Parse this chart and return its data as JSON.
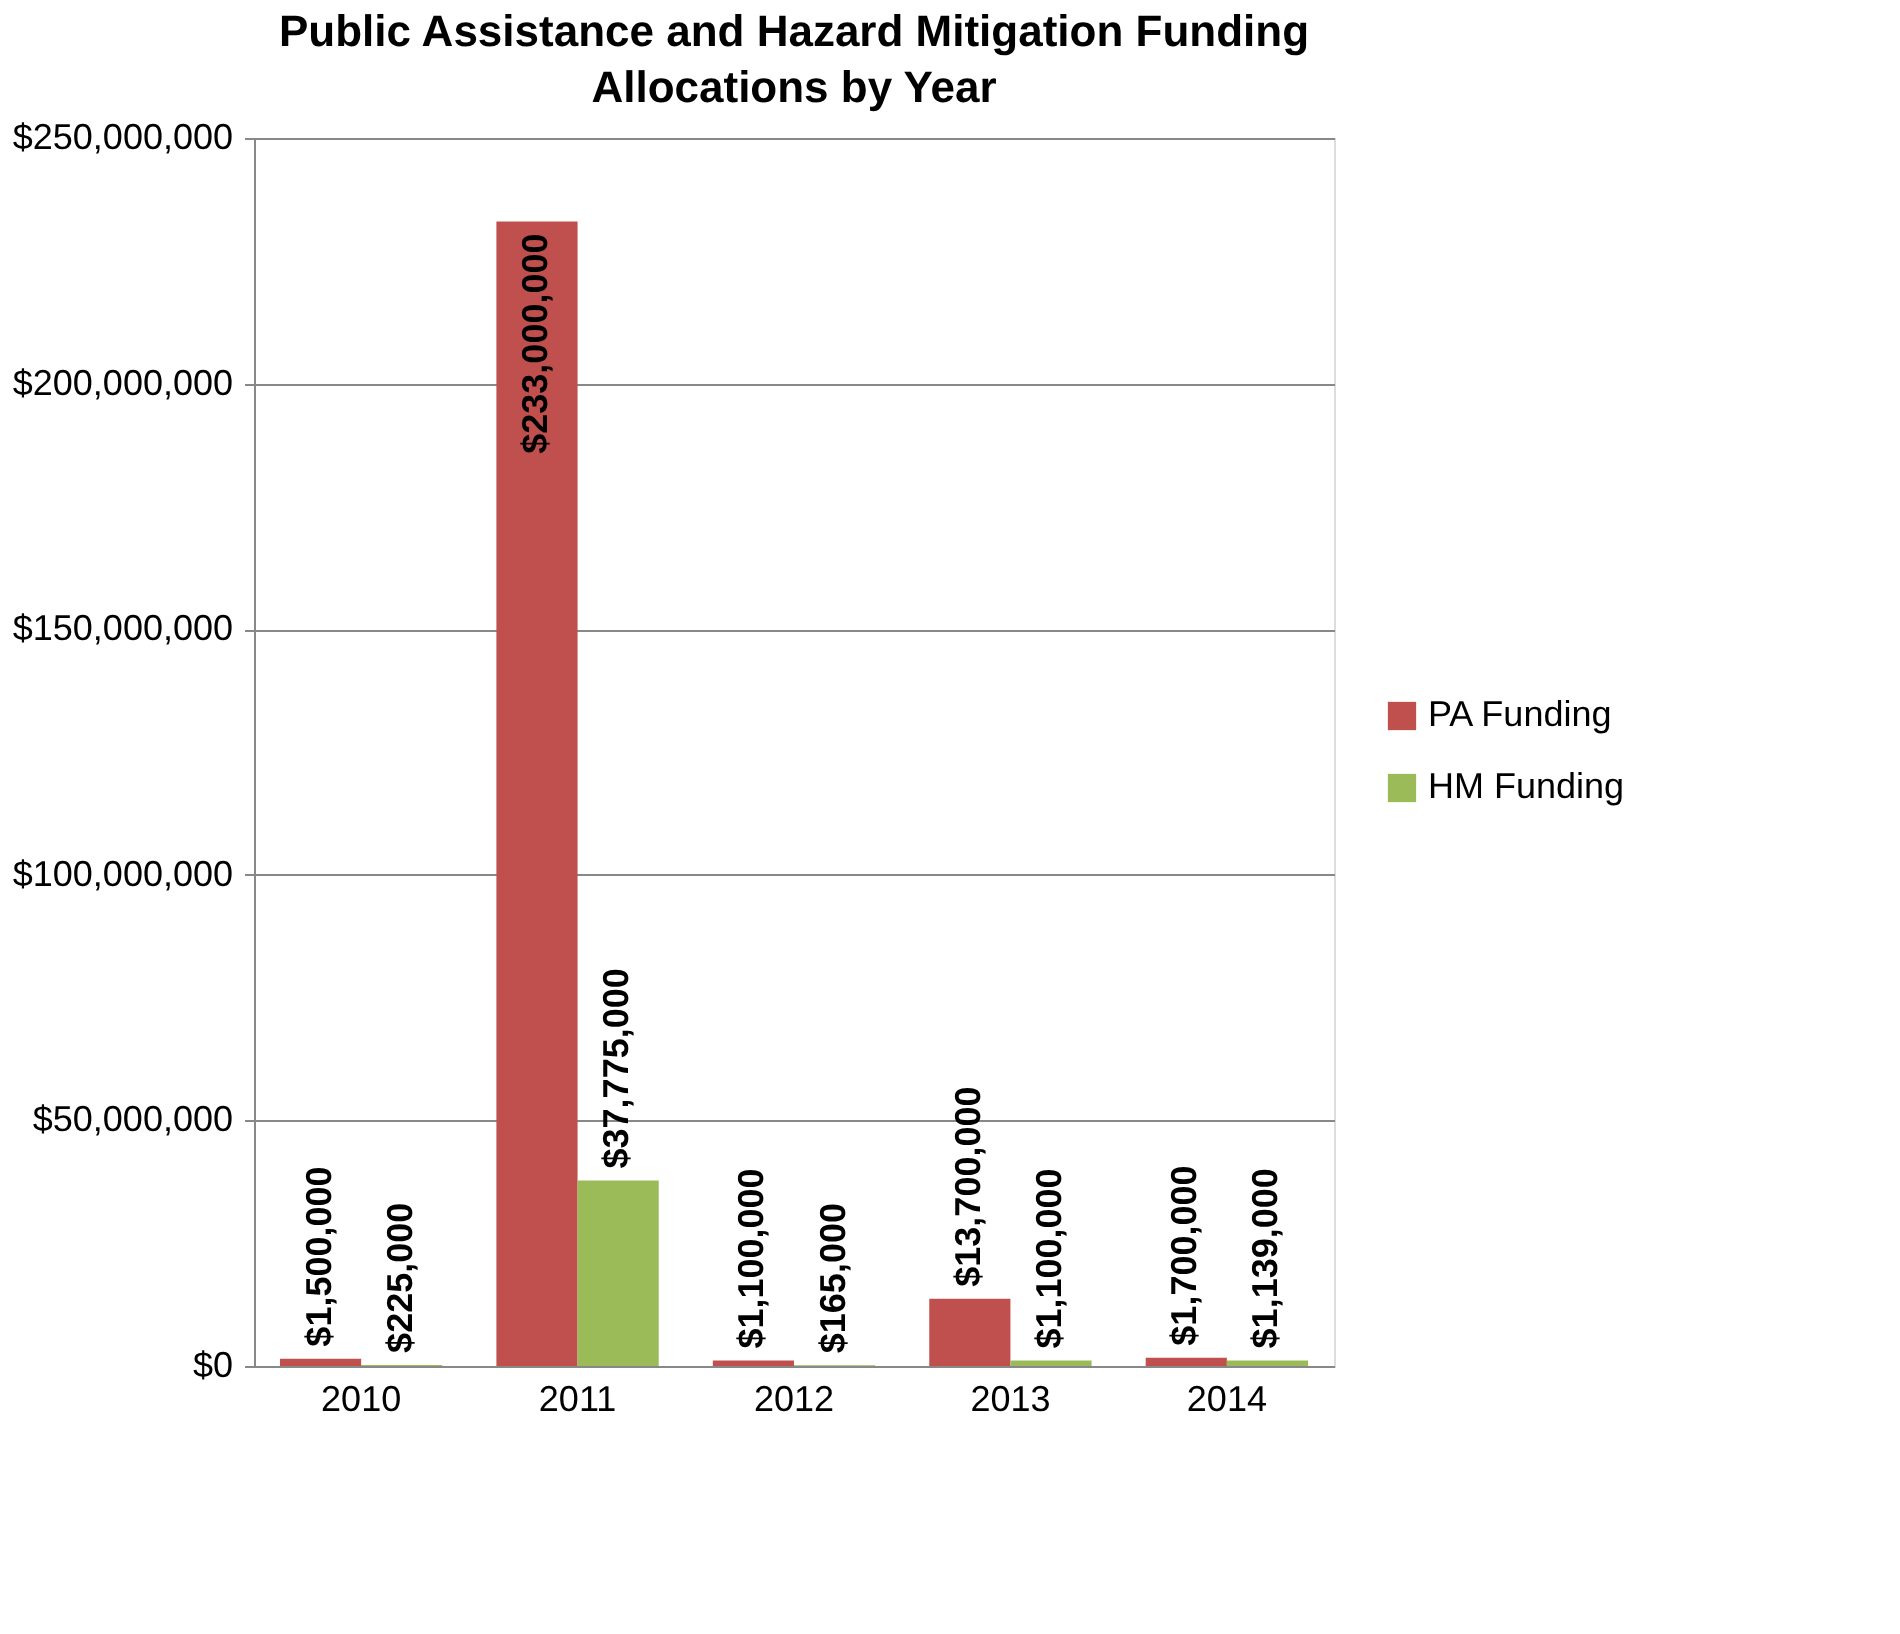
{
  "chart_data": {
    "type": "bar",
    "title": "Public Assistance and Hazard Mitigation Funding Allocations by Year",
    "categories": [
      "2010",
      "2011",
      "2012",
      "2013",
      "2014"
    ],
    "series": [
      {
        "name": "PA Funding",
        "color": "#c0504d",
        "values": [
          1500000,
          233000000,
          1100000,
          13700000,
          1700000
        ],
        "value_labels": [
          "$1,500,000",
          "$233,000,000",
          "$1,100,000",
          "$13,700,000",
          "$1,700,000"
        ]
      },
      {
        "name": "HM Funding",
        "color": "#9bbb59",
        "values": [
          225000,
          37775000,
          165000,
          1100000,
          1139000
        ],
        "value_labels": [
          "$225,000",
          "$37,775,000",
          "$165,000",
          "$1,100,000",
          "$1,139,000"
        ]
      }
    ],
    "ylim": [
      0,
      250000000
    ],
    "yticks": [
      {
        "value": 0,
        "label": "$0"
      },
      {
        "value": 50000000,
        "label": "$50,000,000"
      },
      {
        "value": 100000000,
        "label": "$100,000,000"
      },
      {
        "value": 150000000,
        "label": "$150,000,000"
      },
      {
        "value": 200000000,
        "label": "$200,000,000"
      },
      {
        "value": 250000000,
        "label": "$250,000,000"
      }
    ],
    "grid": "y",
    "legend": "right"
  }
}
